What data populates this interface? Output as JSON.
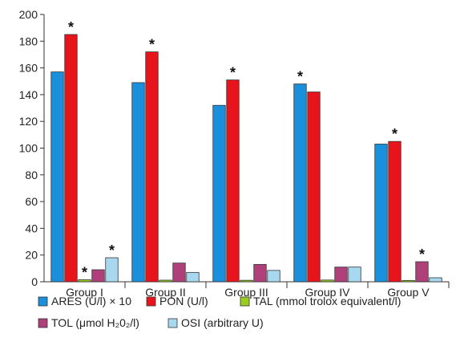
{
  "chart_data": {
    "type": "bar",
    "title": "",
    "xlabel": "",
    "ylabel": "",
    "ylim": [
      0,
      200
    ],
    "yticks": [
      0,
      20,
      40,
      60,
      80,
      100,
      120,
      140,
      160,
      180,
      200
    ],
    "grid": false,
    "legend_position": "bottom",
    "categories": [
      "Group I",
      "Group II",
      "Group III",
      "Group IV",
      "Group V"
    ],
    "series": [
      {
        "name": "ARES (U/l) × 10",
        "color": "#1a8fdc",
        "values": [
          157,
          149,
          132,
          148,
          103
        ],
        "significant": [
          false,
          false,
          false,
          true,
          false
        ]
      },
      {
        "name": "PON (U/l)",
        "color": "#e8141c",
        "values": [
          185,
          172,
          151,
          142,
          105
        ],
        "significant": [
          true,
          true,
          true,
          false,
          true
        ]
      },
      {
        "name": "TAL (mmol trolox equivalent/l)",
        "color": "#9acd1e",
        "values": [
          1.5,
          1.2,
          1.1,
          1.3,
          1.0
        ],
        "significant": [
          true,
          false,
          false,
          false,
          false
        ]
      },
      {
        "name": "TOL (μmol H₂0₂/l)",
        "color": "#b0407a",
        "values": [
          9,
          14,
          13,
          11,
          15
        ],
        "significant": [
          false,
          false,
          false,
          false,
          true
        ]
      },
      {
        "name": "OSI (arbitrary U)",
        "color": "#a8d8f0",
        "values": [
          18,
          7,
          8.5,
          11,
          3
        ],
        "significant": [
          true,
          false,
          false,
          false,
          false
        ]
      }
    ],
    "significance_marker": "*"
  }
}
